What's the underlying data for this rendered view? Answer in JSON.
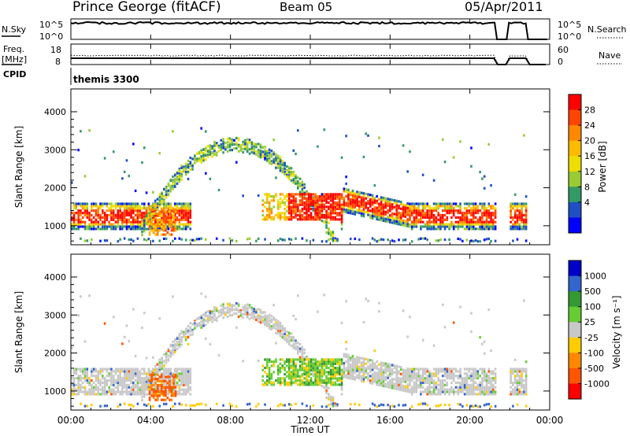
{
  "header": {
    "station": "Prince George (fitACF)",
    "beam": "Beam 05",
    "date": "05/Apr/2011"
  },
  "panels": {
    "nsky": {
      "left_label": "N.Sky",
      "left_ticks": [
        "10^5",
        "10^0"
      ],
      "right_ticks": [
        "10^5",
        "10^0"
      ],
      "right_label": "N.Search"
    },
    "freq": {
      "left_label": "Freq.",
      "left_unit": "[MHz]",
      "left_ticks": [
        "18",
        "8"
      ],
      "right_ticks": [
        "60",
        "0"
      ],
      "right_label": "Nave"
    },
    "cpid": {
      "label": "CPID",
      "value": "themis 3300"
    }
  },
  "chart_data": [
    {
      "type": "heatmap",
      "name": "power",
      "ylabel": "Slant Range [km]",
      "yticks": [
        "1000",
        "2000",
        "3000",
        "4000"
      ],
      "ylim": [
        500,
        4600
      ],
      "xlim_hours": [
        0,
        24
      ],
      "colorbar_label": "Power [dB]",
      "colorbar_ticks": [
        "28",
        "24",
        "20",
        "16",
        "12",
        "8",
        "4"
      ],
      "colorbar_colors": [
        "#ff0000",
        "#ff4400",
        "#ff8800",
        "#ffbb00",
        "#eedd00",
        "#99cc33",
        "#339966",
        "#1f4fc4",
        "#0000ff"
      ]
    },
    {
      "type": "heatmap",
      "name": "velocity",
      "ylabel": "Slant Range [km]",
      "yticks": [
        "1000",
        "2000",
        "3000",
        "4000"
      ],
      "ylim": [
        500,
        4600
      ],
      "xlim_hours": [
        0,
        24
      ],
      "colorbar_label": "Velocity  [m s⁻¹]",
      "colorbar_ticks": [
        "1000",
        "500",
        "100",
        "25",
        "-25",
        "-100",
        "-500",
        "-1000"
      ],
      "colorbar_colors": [
        "#0000c8",
        "#3366cc",
        "#339933",
        "#66cc33",
        "#c8c8c8",
        "#ffcc00",
        "#ff8800",
        "#ff5500",
        "#ff0000"
      ]
    }
  ],
  "xaxis": {
    "ticks": [
      "00:00",
      "04:00",
      "08:00",
      "12:00",
      "16:00",
      "20:00",
      "00:00"
    ],
    "label": "Time UT"
  }
}
